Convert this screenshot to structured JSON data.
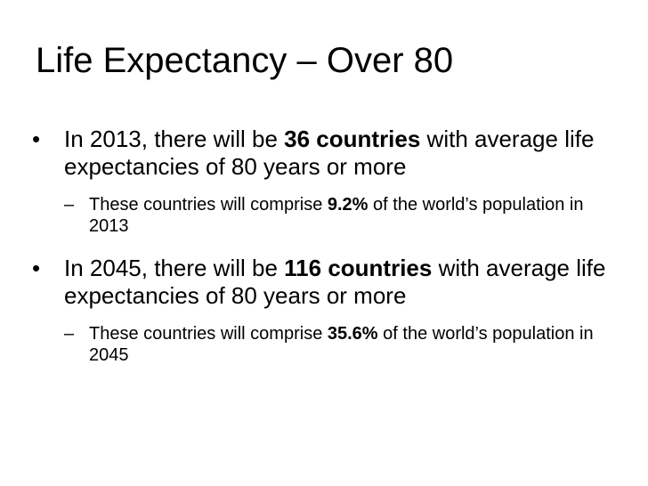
{
  "slide": {
    "title": "Life Expectancy – Over 80",
    "bullets": [
      {
        "marker": "•",
        "pre": "In 2013, there will be ",
        "bold": "36 countries",
        "post": " with average life expectancies of 80 years or more",
        "sub": {
          "marker": "–",
          "pre": "These countries will comprise ",
          "bold": "9.2%",
          "post": " of the world’s population in 2013"
        }
      },
      {
        "marker": "•",
        "pre": "In 2045, there will be ",
        "bold": "116 countries",
        "post": " with average life expectancies of 80 years or more",
        "sub": {
          "marker": "–",
          "pre": "These countries will comprise ",
          "bold": "35.6%",
          "post": " of the world’s population in 2045"
        }
      }
    ]
  }
}
